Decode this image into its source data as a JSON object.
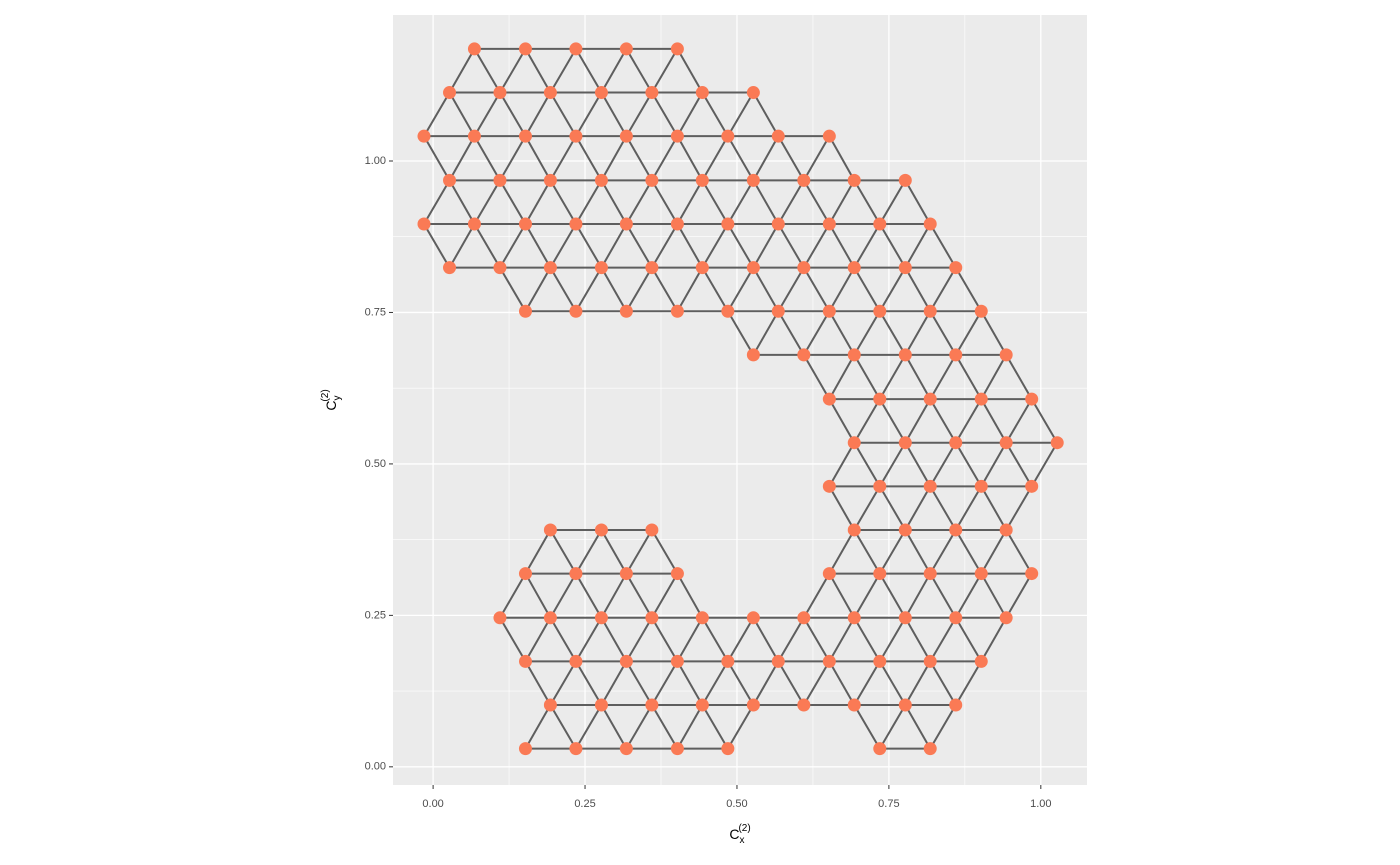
{
  "chart_data": {
    "type": "scatter",
    "x_label": {
      "text": "C",
      "sub": "x",
      "sup": "(2)"
    },
    "y_label": {
      "text": "C",
      "sub": "y",
      "sup": "(2)"
    },
    "x": [
      0.068,
      0.152,
      0.235,
      0.318,
      0.402,
      0.027,
      0.11,
      0.193,
      0.277,
      0.36,
      0.443,
      0.527,
      -0.015,
      0.068,
      0.152,
      0.235,
      0.318,
      0.402,
      0.485,
      0.568,
      0.652,
      0.027,
      0.11,
      0.193,
      0.277,
      0.36,
      0.443,
      0.527,
      0.61,
      0.693,
      0.777,
      -0.015,
      0.068,
      0.152,
      0.235,
      0.318,
      0.402,
      0.485,
      0.568,
      0.652,
      0.735,
      0.818,
      0.027,
      0.11,
      0.193,
      0.277,
      0.36,
      0.443,
      0.527,
      0.61,
      0.693,
      0.777,
      0.86,
      0.152,
      0.235,
      0.318,
      0.402,
      0.485,
      0.568,
      0.652,
      0.735,
      0.818,
      0.902,
      0.527,
      0.61,
      0.693,
      0.777,
      0.86,
      0.943,
      0.652,
      0.735,
      0.818,
      0.902,
      0.985,
      0.693,
      0.777,
      0.86,
      0.943,
      1.027,
      0.652,
      0.735,
      0.818,
      0.902,
      0.985,
      0.193,
      0.277,
      0.36,
      0.693,
      0.777,
      0.86,
      0.943,
      0.152,
      0.235,
      0.318,
      0.402,
      0.652,
      0.735,
      0.818,
      0.902,
      0.985,
      0.11,
      0.193,
      0.277,
      0.36,
      0.443,
      0.527,
      0.61,
      0.693,
      0.777,
      0.86,
      0.943,
      0.152,
      0.235,
      0.318,
      0.402,
      0.485,
      0.568,
      0.652,
      0.735,
      0.818,
      0.902,
      0.193,
      0.277,
      0.36,
      0.443,
      0.527,
      0.61,
      0.693,
      0.777,
      0.86,
      0.152,
      0.235,
      0.318,
      0.402,
      0.485,
      0.735,
      0.818
    ],
    "y": [
      1.185,
      1.185,
      1.185,
      1.185,
      1.185,
      1.113,
      1.113,
      1.113,
      1.113,
      1.113,
      1.113,
      1.113,
      1.041,
      1.041,
      1.041,
      1.041,
      1.041,
      1.041,
      1.041,
      1.041,
      1.041,
      0.968,
      0.968,
      0.968,
      0.968,
      0.968,
      0.968,
      0.968,
      0.968,
      0.968,
      0.968,
      0.896,
      0.896,
      0.896,
      0.896,
      0.896,
      0.896,
      0.896,
      0.896,
      0.896,
      0.896,
      0.896,
      0.824,
      0.824,
      0.824,
      0.824,
      0.824,
      0.824,
      0.824,
      0.824,
      0.824,
      0.824,
      0.824,
      0.752,
      0.752,
      0.752,
      0.752,
      0.752,
      0.752,
      0.752,
      0.752,
      0.752,
      0.752,
      0.68,
      0.68,
      0.68,
      0.68,
      0.68,
      0.68,
      0.607,
      0.607,
      0.607,
      0.607,
      0.607,
      0.535,
      0.535,
      0.535,
      0.535,
      0.535,
      0.463,
      0.463,
      0.463,
      0.463,
      0.463,
      0.391,
      0.391,
      0.391,
      0.391,
      0.391,
      0.391,
      0.391,
      0.319,
      0.319,
      0.319,
      0.319,
      0.319,
      0.319,
      0.319,
      0.319,
      0.319,
      0.246,
      0.246,
      0.246,
      0.246,
      0.246,
      0.246,
      0.246,
      0.246,
      0.246,
      0.246,
      0.246,
      0.174,
      0.174,
      0.174,
      0.174,
      0.174,
      0.174,
      0.174,
      0.174,
      0.174,
      0.174,
      0.102,
      0.102,
      0.102,
      0.102,
      0.102,
      0.102,
      0.102,
      0.102,
      0.102,
      0.03,
      0.03,
      0.03,
      0.03,
      0.03,
      0.03,
      0.03
    ],
    "color": "#fa7a55",
    "edge_color": "#5e5e5e",
    "xlim": [
      -0.066,
      1.076
    ],
    "ylim": [
      -0.03,
      1.241
    ],
    "xticks": [
      {
        "value": 0,
        "label": "0.00"
      },
      {
        "value": 0.25,
        "label": "0.25"
      },
      {
        "value": 0.5,
        "label": "0.50"
      },
      {
        "value": 0.75,
        "label": "0.75"
      },
      {
        "value": 1,
        "label": "1.00"
      }
    ],
    "yticks": [
      {
        "value": 0,
        "label": "0.00"
      },
      {
        "value": 0.25,
        "label": "0.25"
      },
      {
        "value": 0.5,
        "label": "0.50"
      },
      {
        "value": 0.75,
        "label": "0.75"
      },
      {
        "value": 1,
        "label": "1.00"
      }
    ],
    "grid": true
  }
}
